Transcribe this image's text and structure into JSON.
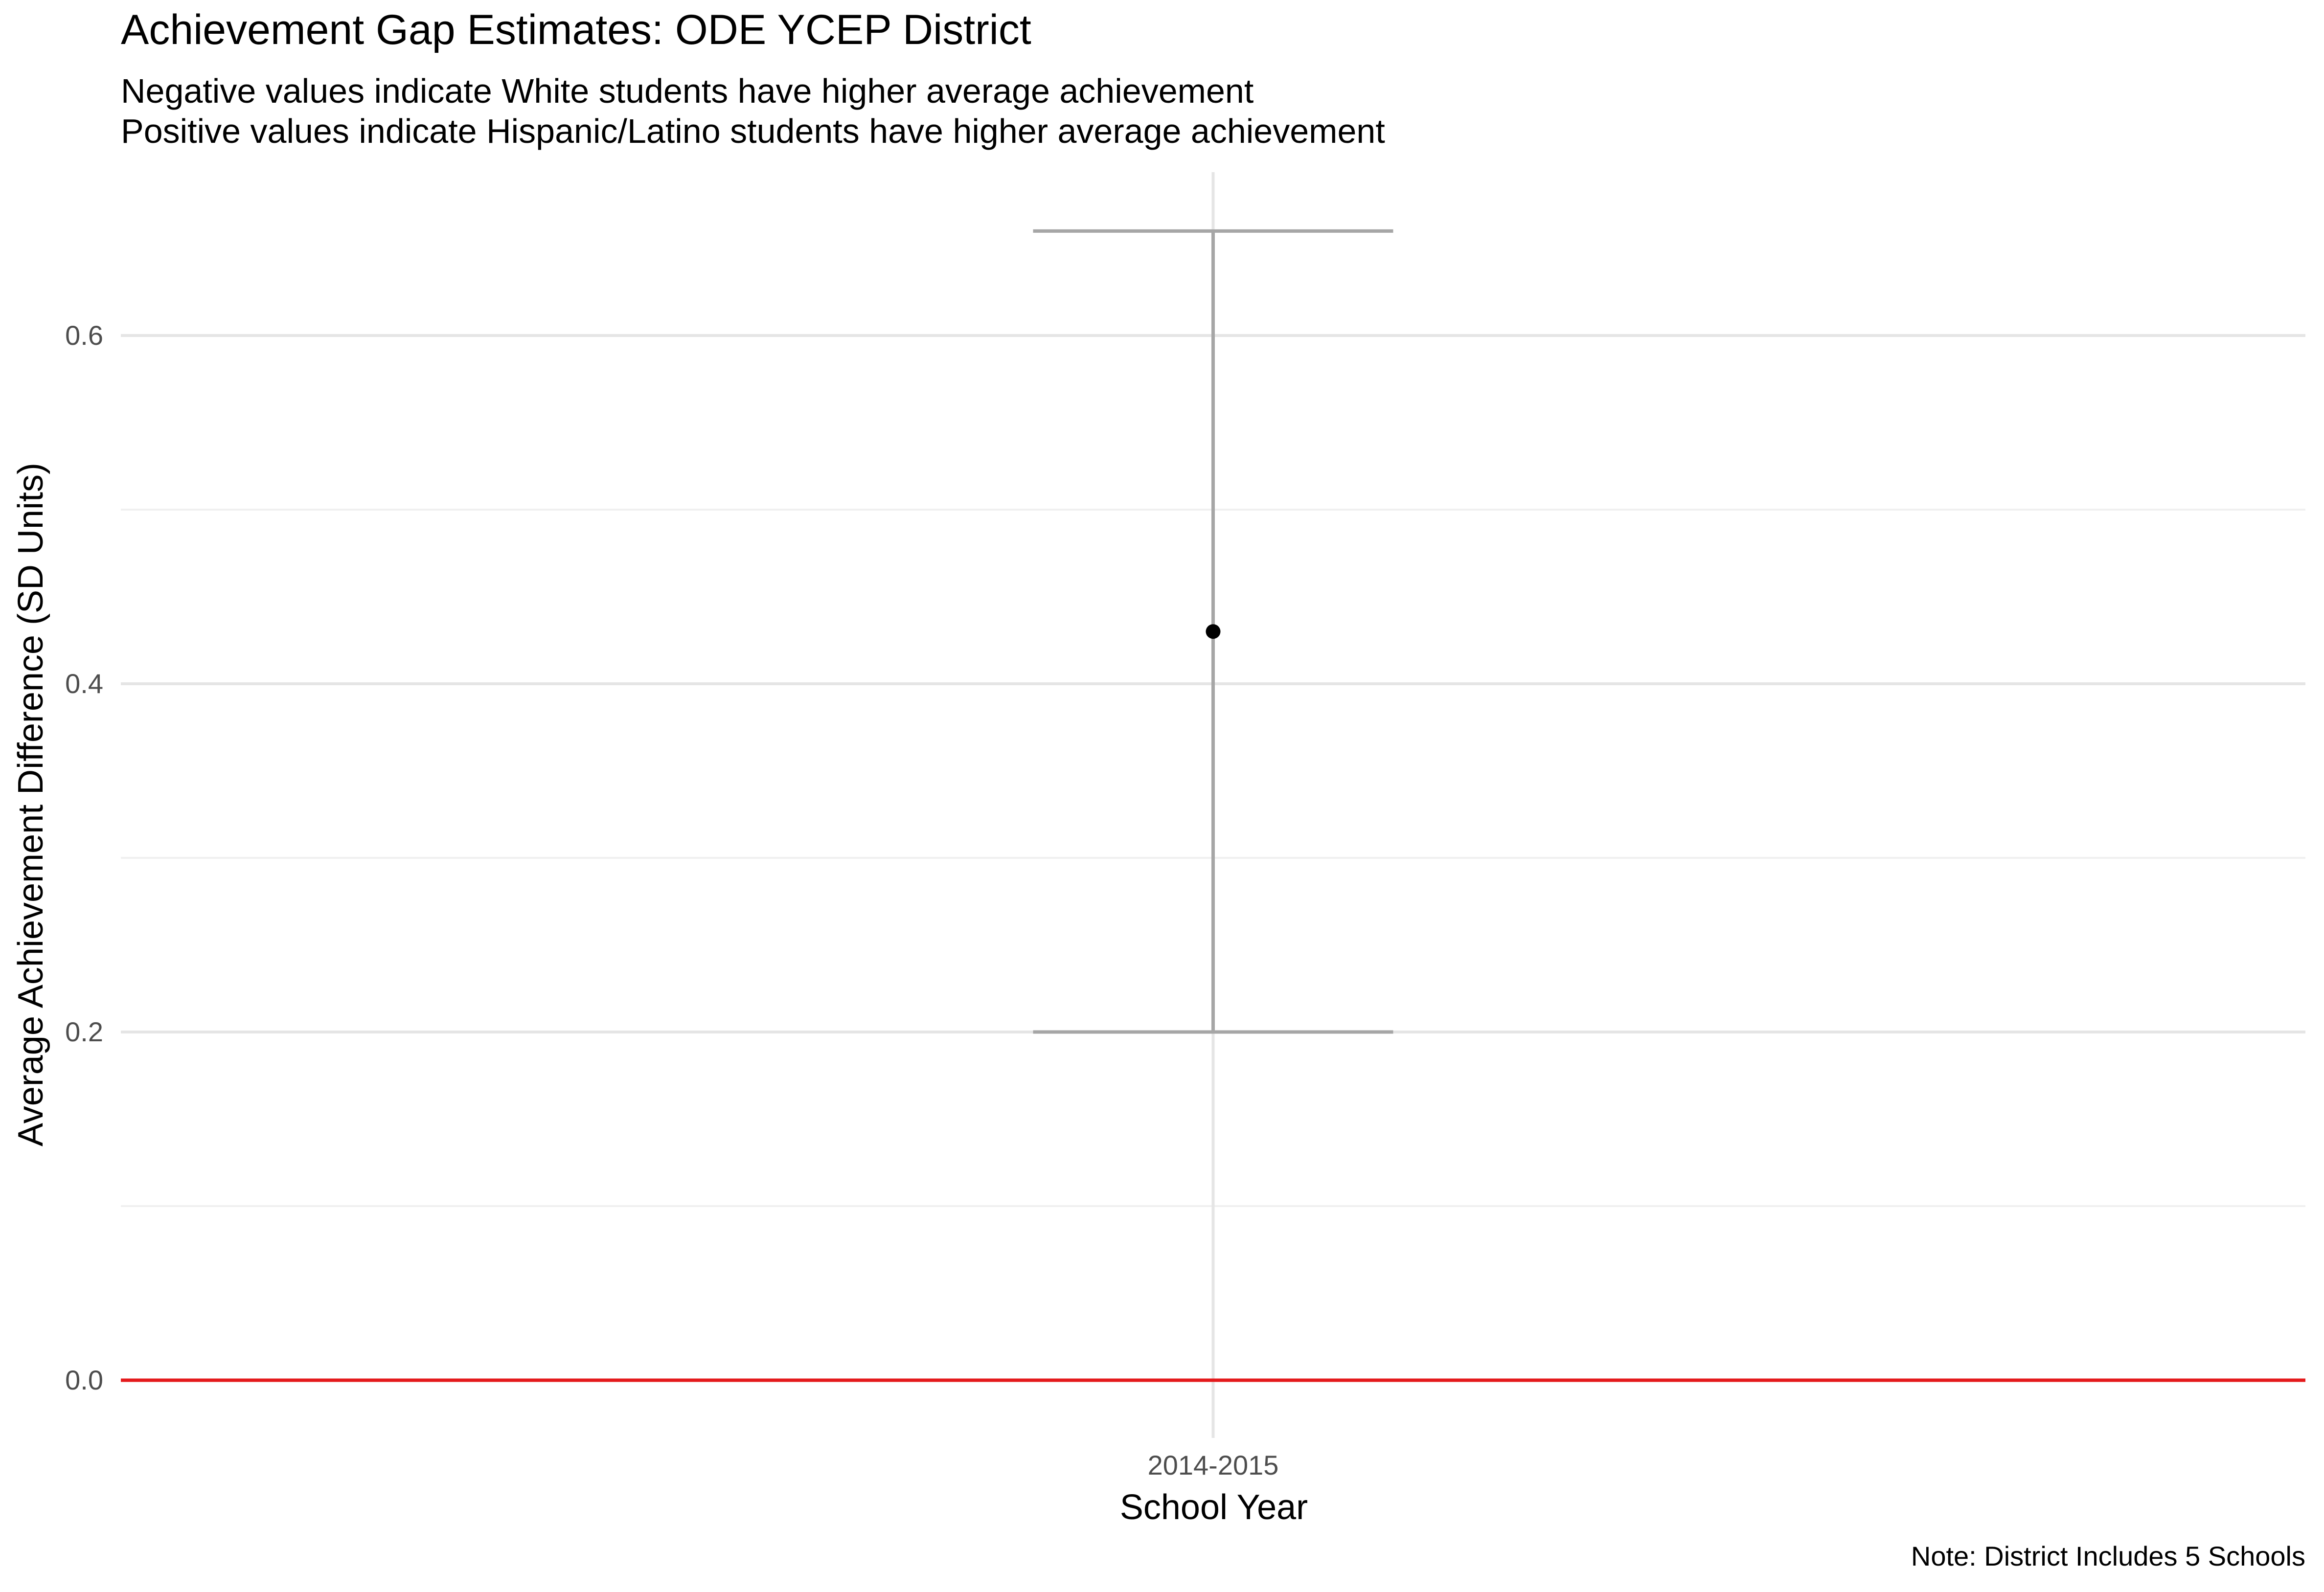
{
  "chart_data": {
    "type": "scatter",
    "title": "Achievement Gap Estimates: ODE YCEP District",
    "subtitle_lines": [
      "Negative values indicate White students have higher average achievement",
      "Positive values indicate Hispanic/Latino students have higher average achievement"
    ],
    "xlabel": "School Year",
    "ylabel": "Average Achievement Difference (SD Units)",
    "caption": "Note: District Includes 5 Schools",
    "categories": [
      "2014-2015"
    ],
    "series": [
      {
        "values": [
          0.43
        ],
        "ci_lower": [
          0.2
        ],
        "ci_upper": [
          0.66
        ]
      }
    ],
    "ylim": [
      -0.0,
      0.69
    ],
    "yticks": [
      0.0,
      0.2,
      0.4,
      0.6
    ],
    "ytick_labels": [
      "0.0",
      "0.2",
      "0.4",
      "0.6"
    ],
    "reference_line": {
      "y": 0.0,
      "color": "#e41a1c"
    },
    "grid": true,
    "legend": "none",
    "colors": {
      "point": "#000000",
      "errorbar": "#a6a6a6",
      "grid_major": "#e5e5e5",
      "grid_minor": "#f0f0f0",
      "text": "#000000",
      "tick_text": "#4d4d4d"
    }
  }
}
